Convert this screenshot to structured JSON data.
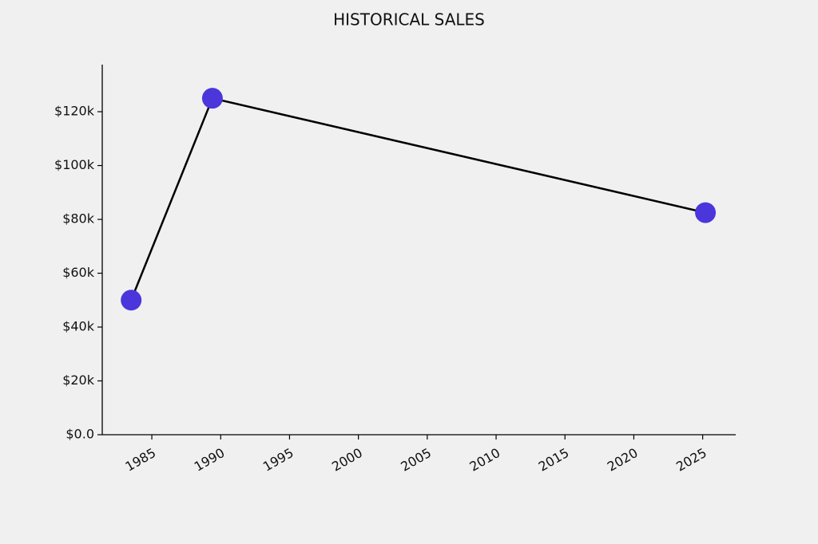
{
  "chart_data": {
    "type": "line",
    "title": "HISTORICAL SALES",
    "x": [
      1983.5,
      1989.4,
      2025.2
    ],
    "values": [
      50000,
      125000,
      82500
    ],
    "line_color": "#000000",
    "marker_color": "#4b36dc",
    "xlim": [
      1981.4,
      2027.4
    ],
    "xticks": [
      1985,
      1990,
      1995,
      2000,
      2005,
      2010,
      2015,
      2020,
      2025
    ],
    "ylim": [
      0,
      137500
    ],
    "yticks": [
      {
        "value": 0,
        "label": "$0.0"
      },
      {
        "value": 20000,
        "label": "$20k"
      },
      {
        "value": 40000,
        "label": "$40k"
      },
      {
        "value": 60000,
        "label": "$60k"
      },
      {
        "value": 80000,
        "label": "$80k"
      },
      {
        "value": 100000,
        "label": "$100k"
      },
      {
        "value": 120000,
        "label": "$120k"
      }
    ],
    "grid": false
  }
}
